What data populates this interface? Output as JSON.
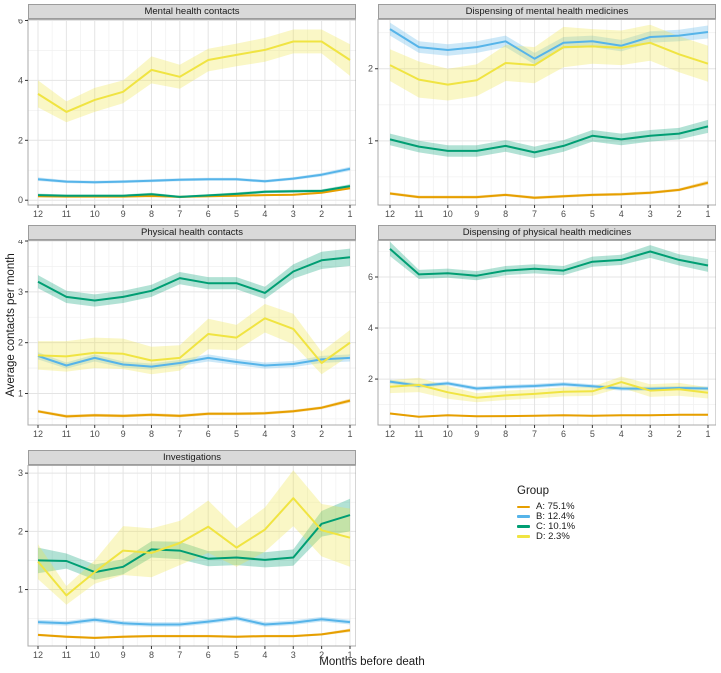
{
  "figure": {
    "x_axis_title": "Months before death",
    "y_axis_title": "Average contacts per month"
  },
  "legend": {
    "title": "Group",
    "position": "right",
    "items": [
      {
        "label": "A: 75.1%",
        "color": "#E69F00"
      },
      {
        "label": "B: 12.4%",
        "color": "#56B4E9"
      },
      {
        "label": "C: 10.1%",
        "color": "#009E73"
      },
      {
        "label": "D: 2.3%",
        "color": "#F0E442"
      }
    ]
  },
  "theme": {
    "strip_bg": "#D9D9D9",
    "strip_border": "#9C9C9C",
    "panel_border": "#ABABAB",
    "grid_major": "#E4E4E4",
    "grid_minor": "#F2F2F2",
    "tick_mark": "#333333",
    "tick_text": "#4D4D4D",
    "ribbon_opacity": 0.3,
    "line_width": 2
  },
  "chart_data": {
    "type": "line",
    "x": [
      12,
      11,
      10,
      9,
      8,
      7,
      6,
      5,
      4,
      3,
      2,
      1
    ],
    "x_label": "Months before death",
    "y_label": "Average contacts per month",
    "grid": true,
    "legend_position": "right",
    "facet_layout": "2 columns, 5 panels, free y scales",
    "panels": [
      {
        "title": "Mental health contacts",
        "ylim": [
          -0.16,
          6.05
        ],
        "yticks": [
          0,
          2,
          4,
          6
        ],
        "series": [
          {
            "name": "A: 75.1%",
            "color": "#E69F00",
            "values": [
              0.13,
              0.12,
              0.12,
              0.12,
              0.14,
              0.11,
              0.13,
              0.15,
              0.17,
              0.18,
              0.25,
              0.4
            ],
            "band": [
              0.03,
              0.03,
              0.03,
              0.03,
              0.03,
              0.03,
              0.03,
              0.03,
              0.03,
              0.03,
              0.03,
              0.04
            ]
          },
          {
            "name": "B: 12.4%",
            "color": "#56B4E9",
            "values": [
              0.7,
              0.62,
              0.6,
              0.62,
              0.65,
              0.68,
              0.7,
              0.7,
              0.63,
              0.72,
              0.85,
              1.05
            ],
            "band": [
              0.06,
              0.05,
              0.05,
              0.05,
              0.05,
              0.05,
              0.05,
              0.05,
              0.05,
              0.05,
              0.06,
              0.07
            ]
          },
          {
            "name": "C: 10.1%",
            "color": "#009E73",
            "values": [
              0.17,
              0.15,
              0.15,
              0.15,
              0.2,
              0.11,
              0.16,
              0.21,
              0.28,
              0.3,
              0.31,
              0.47
            ],
            "band": [
              0.05,
              0.04,
              0.04,
              0.04,
              0.05,
              0.04,
              0.04,
              0.05,
              0.05,
              0.05,
              0.05,
              0.06
            ]
          },
          {
            "name": "D: 2.3%",
            "color": "#F0E442",
            "values": [
              3.55,
              2.95,
              3.35,
              3.62,
              4.35,
              4.12,
              4.68,
              4.85,
              5.02,
              5.3,
              5.3,
              4.68
            ],
            "band": [
              0.45,
              0.35,
              0.4,
              0.38,
              0.45,
              0.4,
              0.38,
              0.38,
              0.4,
              0.4,
              0.4,
              0.53
            ]
          }
        ]
      },
      {
        "title": "Dispensing of mental health medicines",
        "ylim": [
          0.11,
          2.69
        ],
        "yticks": [
          1,
          2
        ],
        "series": [
          {
            "name": "A: 75.1%",
            "color": "#E69F00",
            "values": [
              0.27,
              0.22,
              0.22,
              0.22,
              0.25,
              0.21,
              0.23,
              0.25,
              0.26,
              0.28,
              0.32,
              0.42
            ],
            "band": [
              0.02,
              0.02,
              0.02,
              0.02,
              0.02,
              0.02,
              0.02,
              0.02,
              0.02,
              0.02,
              0.02,
              0.03
            ]
          },
          {
            "name": "B: 12.4%",
            "color": "#56B4E9",
            "values": [
              2.55,
              2.3,
              2.26,
              2.3,
              2.38,
              2.14,
              2.36,
              2.38,
              2.32,
              2.44,
              2.46,
              2.51
            ],
            "band": [
              0.09,
              0.08,
              0.08,
              0.08,
              0.08,
              0.08,
              0.08,
              0.08,
              0.08,
              0.08,
              0.08,
              0.09
            ]
          },
          {
            "name": "C: 10.1%",
            "color": "#009E73",
            "values": [
              1.02,
              0.92,
              0.86,
              0.86,
              0.93,
              0.84,
              0.93,
              1.07,
              1.02,
              1.07,
              1.1,
              1.2
            ],
            "band": [
              0.08,
              0.08,
              0.08,
              0.08,
              0.08,
              0.08,
              0.08,
              0.08,
              0.08,
              0.08,
              0.08,
              0.09
            ]
          },
          {
            "name": "D: 2.3%",
            "color": "#F0E442",
            "values": [
              2.05,
              1.85,
              1.78,
              1.84,
              2.08,
              2.05,
              2.3,
              2.31,
              2.29,
              2.36,
              2.2,
              2.07
            ],
            "band": [
              0.22,
              0.25,
              0.22,
              0.22,
              0.25,
              0.25,
              0.28,
              0.24,
              0.24,
              0.25,
              0.25,
              0.25
            ]
          }
        ]
      },
      {
        "title": "Physical health contacts",
        "ylim": [
          0.38,
          4.02
        ],
        "yticks": [
          1,
          2,
          3,
          4
        ],
        "series": [
          {
            "name": "A: 75.1%",
            "color": "#E69F00",
            "values": [
              0.65,
              0.55,
              0.57,
              0.56,
              0.58,
              0.56,
              0.6,
              0.6,
              0.61,
              0.65,
              0.72,
              0.86
            ],
            "band": [
              0.03,
              0.03,
              0.03,
              0.03,
              0.03,
              0.03,
              0.03,
              0.03,
              0.03,
              0.03,
              0.03,
              0.04
            ]
          },
          {
            "name": "B: 12.4%",
            "color": "#56B4E9",
            "values": [
              1.74,
              1.55,
              1.7,
              1.57,
              1.53,
              1.6,
              1.7,
              1.62,
              1.55,
              1.58,
              1.67,
              1.7
            ],
            "band": [
              0.07,
              0.06,
              0.07,
              0.06,
              0.06,
              0.06,
              0.07,
              0.06,
              0.06,
              0.06,
              0.07,
              0.07
            ]
          },
          {
            "name": "C: 10.1%",
            "color": "#009E73",
            "values": [
              3.2,
              2.9,
              2.83,
              2.9,
              3.02,
              3.27,
              3.17,
              3.17,
              2.98,
              3.4,
              3.62,
              3.68
            ],
            "band": [
              0.13,
              0.12,
              0.12,
              0.12,
              0.12,
              0.12,
              0.12,
              0.12,
              0.12,
              0.14,
              0.17,
              0.17
            ]
          },
          {
            "name": "D: 2.3%",
            "color": "#F0E442",
            "values": [
              1.75,
              1.73,
              1.8,
              1.78,
              1.65,
              1.7,
              2.17,
              2.1,
              2.48,
              2.27,
              1.6,
              2.0
            ],
            "band": [
              0.28,
              0.3,
              0.3,
              0.3,
              0.27,
              0.25,
              0.3,
              0.25,
              0.28,
              0.3,
              0.22,
              0.25
            ]
          }
        ]
      },
      {
        "title": "Dispensing of physical health medicines",
        "ylim": [
          0.2,
          7.45
        ],
        "yticks": [
          2,
          4,
          6
        ],
        "series": [
          {
            "name": "A: 75.1%",
            "color": "#E69F00",
            "values": [
              0.65,
              0.52,
              0.58,
              0.54,
              0.55,
              0.56,
              0.58,
              0.56,
              0.58,
              0.58,
              0.6,
              0.6
            ],
            "band": [
              0.04,
              0.03,
              0.03,
              0.03,
              0.03,
              0.03,
              0.03,
              0.03,
              0.03,
              0.03,
              0.03,
              0.04
            ]
          },
          {
            "name": "B: 12.4%",
            "color": "#56B4E9",
            "values": [
              1.9,
              1.74,
              1.83,
              1.63,
              1.69,
              1.73,
              1.8,
              1.72,
              1.63,
              1.62,
              1.65,
              1.63
            ],
            "band": [
              0.08,
              0.08,
              0.08,
              0.08,
              0.08,
              0.08,
              0.08,
              0.08,
              0.08,
              0.08,
              0.08,
              0.08
            ]
          },
          {
            "name": "C: 10.1%",
            "color": "#009E73",
            "values": [
              7.1,
              6.1,
              6.15,
              6.05,
              6.25,
              6.32,
              6.25,
              6.6,
              6.67,
              7.0,
              6.67,
              6.45
            ],
            "band": [
              0.28,
              0.18,
              0.18,
              0.18,
              0.18,
              0.18,
              0.18,
              0.2,
              0.2,
              0.25,
              0.22,
              0.25
            ]
          },
          {
            "name": "D: 2.3%",
            "color": "#F0E442",
            "values": [
              1.7,
              1.77,
              1.48,
              1.27,
              1.36,
              1.42,
              1.5,
              1.52,
              1.88,
              1.55,
              1.6,
              1.46
            ],
            "band": [
              0.25,
              0.28,
              0.25,
              0.18,
              0.18,
              0.18,
              0.18,
              0.18,
              0.22,
              0.25,
              0.25,
              0.22
            ]
          }
        ]
      },
      {
        "title": "Investigations",
        "ylim": [
          0.03,
          3.14
        ],
        "yticks": [
          1,
          2,
          3
        ],
        "series": [
          {
            "name": "A: 75.1%",
            "color": "#E69F00",
            "values": [
              0.22,
              0.19,
              0.17,
              0.19,
              0.2,
              0.2,
              0.2,
              0.19,
              0.2,
              0.2,
              0.23,
              0.3
            ],
            "band": [
              0.02,
              0.02,
              0.02,
              0.02,
              0.02,
              0.02,
              0.02,
              0.02,
              0.02,
              0.02,
              0.02,
              0.03
            ]
          },
          {
            "name": "B: 12.4%",
            "color": "#56B4E9",
            "values": [
              0.44,
              0.42,
              0.48,
              0.42,
              0.4,
              0.4,
              0.45,
              0.51,
              0.4,
              0.43,
              0.49,
              0.44
            ],
            "band": [
              0.04,
              0.04,
              0.04,
              0.04,
              0.04,
              0.04,
              0.04,
              0.04,
              0.04,
              0.04,
              0.04,
              0.04
            ]
          },
          {
            "name": "C: 10.1%",
            "color": "#009E73",
            "values": [
              1.5,
              1.49,
              1.3,
              1.39,
              1.69,
              1.67,
              1.53,
              1.55,
              1.51,
              1.55,
              2.13,
              2.28
            ],
            "band": [
              0.22,
              0.13,
              0.13,
              0.13,
              0.14,
              0.15,
              0.13,
              0.13,
              0.13,
              0.14,
              0.22,
              0.28
            ]
          },
          {
            "name": "D: 2.3%",
            "color": "#F0E442",
            "values": [
              1.48,
              0.9,
              1.3,
              1.67,
              1.63,
              1.8,
              2.08,
              1.72,
              2.03,
              2.57,
              2.02,
              1.89
            ],
            "band": [
              0.3,
              0.16,
              0.2,
              0.42,
              0.42,
              0.38,
              0.45,
              0.33,
              0.38,
              0.48,
              0.45,
              0.5
            ]
          }
        ]
      }
    ]
  }
}
